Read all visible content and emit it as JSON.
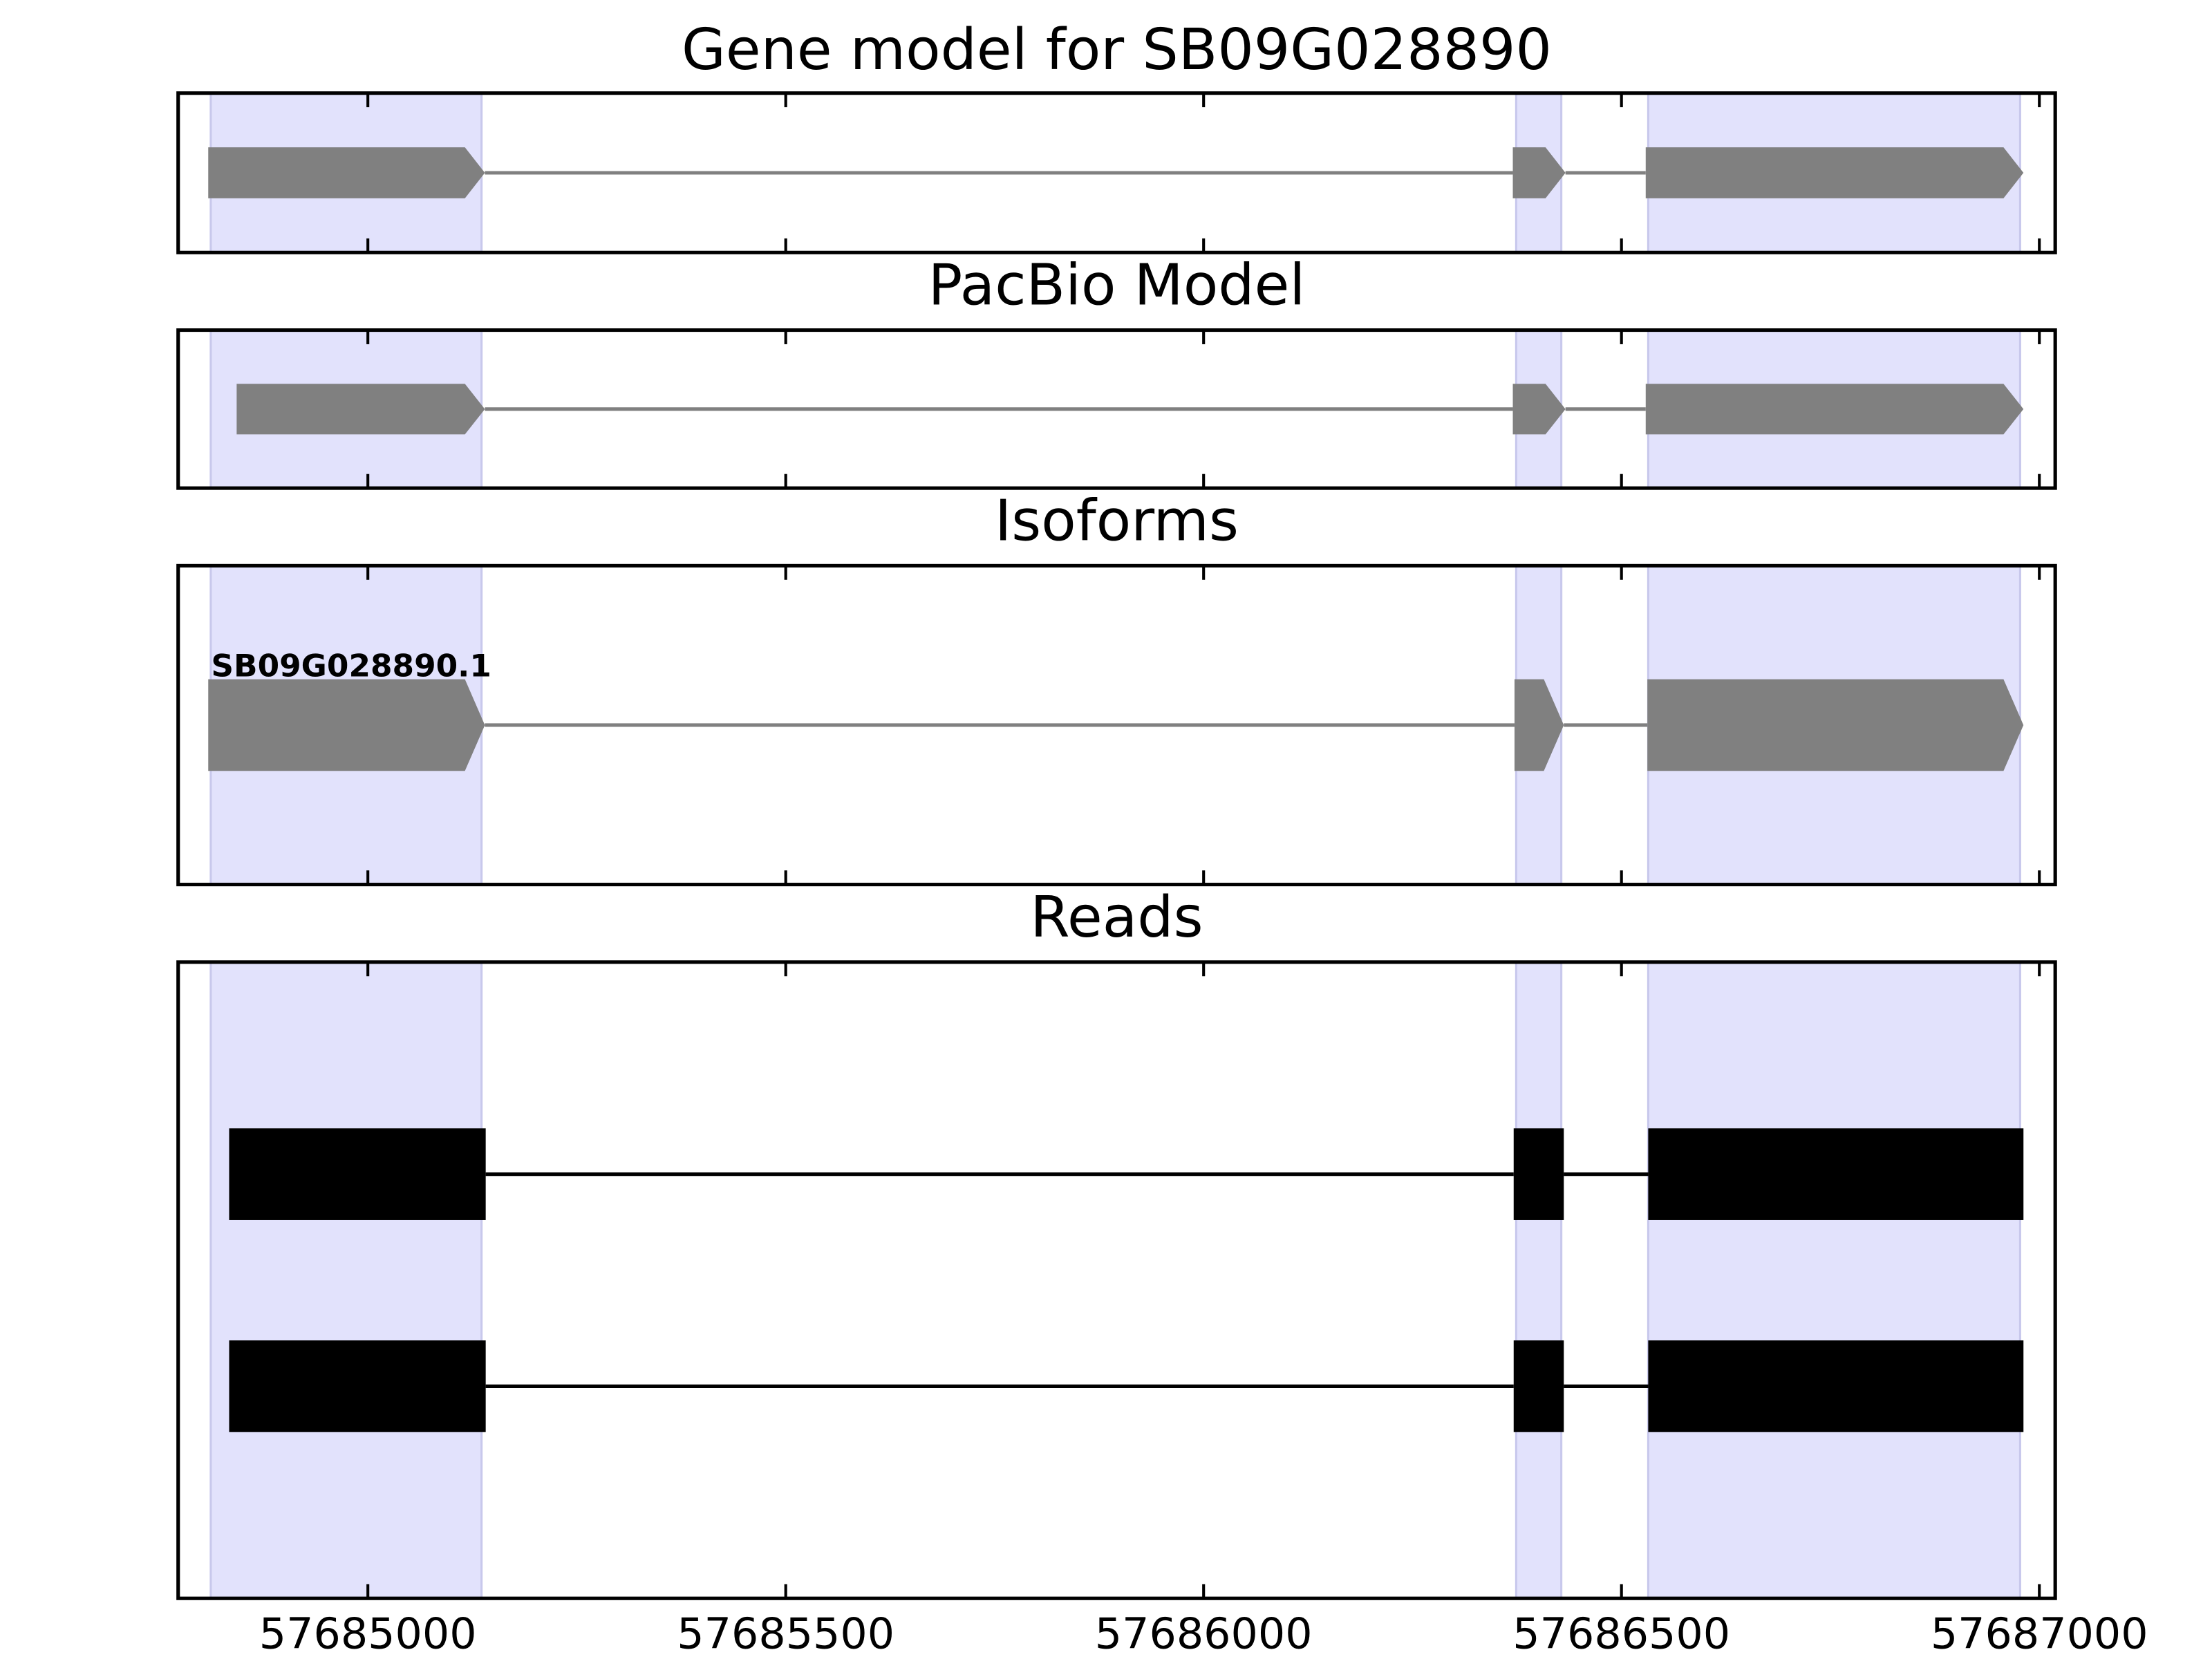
{
  "chart_data": {
    "type": "gene-model",
    "xlim": [
      57684773,
      57687019
    ],
    "xticks": [
      57685000,
      57685500,
      57686000,
      57686500,
      57687000
    ],
    "highlight_color": "#e2e2fc",
    "highlights": [
      [
        57684812,
        57685136
      ],
      [
        57686374,
        57686428
      ],
      [
        57686532,
        57686977
      ]
    ],
    "panels": [
      {
        "title": "Gene model for SB09G028890",
        "style": "arrow",
        "color": "#808080",
        "features": [
          {
            "blocks": [
              [
                57684809,
                57685140
              ],
              [
                57686370,
                57686433
              ],
              [
                57686529,
                57686981
              ]
            ]
          }
        ]
      },
      {
        "title": "PacBio Model",
        "style": "arrow",
        "color": "#808080",
        "features": [
          {
            "blocks": [
              [
                57684843,
                57685140
              ],
              [
                57686370,
                57686433
              ],
              [
                57686529,
                57686981
              ]
            ]
          }
        ]
      },
      {
        "title": "Isoforms",
        "style": "arrow",
        "color": "#808080",
        "features": [
          {
            "name": "SB09G028890.1",
            "blocks": [
              [
                57684809,
                57685140
              ],
              [
                57686372,
                57686431
              ],
              [
                57686531,
                57686981
              ]
            ]
          }
        ]
      },
      {
        "title": "Reads",
        "style": "box",
        "color": "#000000",
        "features": [
          {
            "blocks": [
              [
                57684834,
                57685141
              ],
              [
                57686371,
                57686431
              ],
              [
                57686532,
                57686981
              ]
            ]
          },
          {
            "blocks": [
              [
                57684834,
                57685141
              ],
              [
                57686371,
                57686431
              ],
              [
                57686532,
                57686981
              ]
            ]
          }
        ]
      }
    ]
  }
}
